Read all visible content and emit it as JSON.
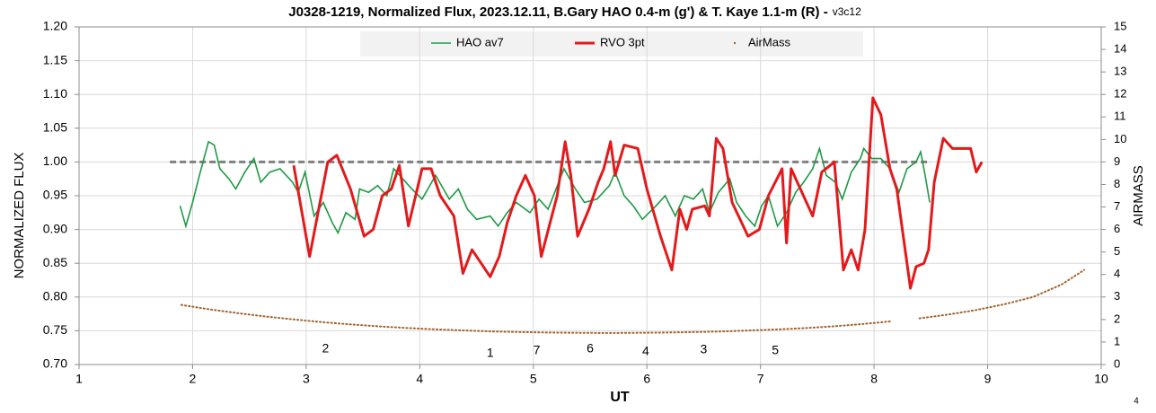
{
  "chart_data": {
    "type": "line",
    "title": "J0328-1219, Normalized Flux, 2023.12.11, B.Gary HAO 0.4-m (g') & T. Kaye 1.1-m (R) -",
    "subtitle": "v3c12",
    "x_label": "UT",
    "y_label": "NORMALIZED FLUX",
    "y2_label": "AIRMASS",
    "footnote": "4",
    "xlim": [
      1,
      10
    ],
    "xticks": [
      1,
      2,
      3,
      4,
      5,
      6,
      7,
      8,
      9,
      10
    ],
    "ylim": [
      0.7,
      1.2
    ],
    "yticks": [
      {
        "value": 0.7,
        "label": "0.70"
      },
      {
        "value": 0.75,
        "label": "0.75"
      },
      {
        "value": 0.8,
        "label": "0.80"
      },
      {
        "value": 0.85,
        "label": "0.85"
      },
      {
        "value": 0.9,
        "label": "0.90"
      },
      {
        "value": 0.95,
        "label": "0.95"
      },
      {
        "value": 1.0,
        "label": "1.00"
      },
      {
        "value": 1.05,
        "label": "1.05"
      },
      {
        "value": 1.1,
        "label": "1.10"
      },
      {
        "value": 1.15,
        "label": "1.15"
      },
      {
        "value": 1.2,
        "label": "1.20"
      }
    ],
    "y2lim": [
      0,
      15
    ],
    "y2ticks": [
      0,
      1,
      2,
      3,
      4,
      5,
      6,
      7,
      8,
      9,
      10,
      11,
      12,
      13,
      14,
      15
    ],
    "grid": true,
    "legend": "top",
    "reference_line": {
      "y": 1.0,
      "x": [
        1.8,
        8.5
      ],
      "color": "#808080"
    },
    "series": [
      {
        "name": "HAO av7",
        "color": "#1e9a44",
        "style": "line",
        "x": [
          1.89,
          1.94,
          2.0,
          2.06,
          2.14,
          2.19,
          2.24,
          2.32,
          2.38,
          2.46,
          2.54,
          2.6,
          2.68,
          2.77,
          2.88,
          2.93,
          2.99,
          3.07,
          3.15,
          3.23,
          3.28,
          3.35,
          3.43,
          3.47,
          3.55,
          3.63,
          3.71,
          3.77,
          3.85,
          3.93,
          4.02,
          4.14,
          4.26,
          4.34,
          4.42,
          4.5,
          4.62,
          4.69,
          4.77,
          4.85,
          4.97,
          5.05,
          5.13,
          5.27,
          5.37,
          5.45,
          5.56,
          5.67,
          5.72,
          5.8,
          5.88,
          5.96,
          6.08,
          6.16,
          6.25,
          6.33,
          6.41,
          6.49,
          6.55,
          6.63,
          6.73,
          6.79,
          6.87,
          6.95,
          7.01,
          7.07,
          7.15,
          7.23,
          7.31,
          7.38,
          7.46,
          7.52,
          7.58,
          7.66,
          7.72,
          7.8,
          7.88,
          7.91,
          7.98,
          8.06,
          8.14,
          8.22,
          8.29,
          8.37,
          8.41,
          8.45,
          8.49
        ],
        "values": [
          0.935,
          0.905,
          0.94,
          0.98,
          1.03,
          1.025,
          0.99,
          0.975,
          0.96,
          0.985,
          1.005,
          0.97,
          0.985,
          0.99,
          0.97,
          0.955,
          0.985,
          0.92,
          0.94,
          0.91,
          0.895,
          0.925,
          0.915,
          0.96,
          0.955,
          0.965,
          0.95,
          0.99,
          0.975,
          0.96,
          0.945,
          0.98,
          0.945,
          0.96,
          0.93,
          0.915,
          0.92,
          0.905,
          0.925,
          0.94,
          0.925,
          0.945,
          0.93,
          0.99,
          0.96,
          0.94,
          0.945,
          0.965,
          0.985,
          0.95,
          0.935,
          0.915,
          0.935,
          0.95,
          0.92,
          0.95,
          0.945,
          0.96,
          0.925,
          0.955,
          0.975,
          0.94,
          0.92,
          0.905,
          0.935,
          0.95,
          0.905,
          0.925,
          0.955,
          0.97,
          0.99,
          1.02,
          0.98,
          0.97,
          0.945,
          0.985,
          1.005,
          1.02,
          1.005,
          1.005,
          0.99,
          0.955,
          0.99,
          1.0,
          1.015,
          0.98,
          0.94
        ]
      },
      {
        "name": "RVO 3pt",
        "color": "#e31a1c",
        "style": "thick",
        "x": [
          2.89,
          3.03,
          3.19,
          3.27,
          3.39,
          3.51,
          3.59,
          3.67,
          3.75,
          3.82,
          3.9,
          4.02,
          4.1,
          4.18,
          4.3,
          4.38,
          4.46,
          4.5,
          4.62,
          4.7,
          4.77,
          4.85,
          4.93,
          5.01,
          5.07,
          5.21,
          5.28,
          5.33,
          5.39,
          5.49,
          5.57,
          5.62,
          5.68,
          5.72,
          5.8,
          5.92,
          6.0,
          6.12,
          6.22,
          6.29,
          6.35,
          6.4,
          6.51,
          6.55,
          6.61,
          6.67,
          6.75,
          6.89,
          6.99,
          7.07,
          7.19,
          7.23,
          7.27,
          7.46,
          7.54,
          7.65,
          7.73,
          7.8,
          7.86,
          7.92,
          7.99,
          8.06,
          8.14,
          8.2,
          8.32,
          8.37,
          8.44,
          8.48,
          8.53,
          8.61,
          8.69,
          8.85,
          8.9,
          8.95
        ],
        "values": [
          0.995,
          0.86,
          1.0,
          1.01,
          0.96,
          0.89,
          0.9,
          0.95,
          0.96,
          0.995,
          0.905,
          0.99,
          0.99,
          0.95,
          0.92,
          0.835,
          0.87,
          0.86,
          0.83,
          0.86,
          0.91,
          0.95,
          0.98,
          0.95,
          0.86,
          0.95,
          1.03,
          0.98,
          0.89,
          0.93,
          0.97,
          0.99,
          1.03,
          0.98,
          1.025,
          1.02,
          0.96,
          0.89,
          0.84,
          0.93,
          0.9,
          0.93,
          0.935,
          0.92,
          1.035,
          1.02,
          0.94,
          0.89,
          0.9,
          0.95,
          0.99,
          0.88,
          0.99,
          0.92,
          0.985,
          1.0,
          0.84,
          0.87,
          0.84,
          0.9,
          1.095,
          1.07,
          0.99,
          0.96,
          0.813,
          0.845,
          0.85,
          0.87,
          0.97,
          1.035,
          1.02,
          1.02,
          0.985,
          1.0
        ]
      },
      {
        "name": "AirMass",
        "color": "#a0622d",
        "style": "dots",
        "axis": "y2",
        "x": [
          1.9,
          2.15,
          2.4,
          2.65,
          2.9,
          3.15,
          3.4,
          3.65,
          3.9,
          4.15,
          4.4,
          4.65,
          4.9,
          5.15,
          5.4,
          5.65,
          5.9,
          6.15,
          6.4,
          6.65,
          6.9,
          7.15,
          7.4,
          7.65,
          7.9,
          8.15,
          8.3,
          8.4,
          8.65,
          8.9,
          9.15,
          9.4,
          9.65,
          9.85
        ],
        "values": [
          2.65,
          2.45,
          2.28,
          2.13,
          2.0,
          1.88,
          1.78,
          1.69,
          1.62,
          1.56,
          1.51,
          1.47,
          1.44,
          1.42,
          1.41,
          1.4,
          1.41,
          1.42,
          1.44,
          1.47,
          1.51,
          1.56,
          1.62,
          1.7,
          1.8,
          1.92,
          null,
          2.05,
          2.22,
          2.42,
          2.68,
          3.0,
          3.55,
          4.2
        ]
      }
    ],
    "annotations": [
      {
        "text": "2",
        "x": 3.17,
        "y": 0.68,
        "axis": "y2"
      },
      {
        "text": "1",
        "x": 4.62,
        "y": 0.48,
        "axis": "y2"
      },
      {
        "text": "7",
        "x": 5.03,
        "y": 0.6,
        "axis": "y2"
      },
      {
        "text": "6",
        "x": 5.5,
        "y": 0.68,
        "axis": "y2"
      },
      {
        "text": "4",
        "x": 5.99,
        "y": 0.56,
        "axis": "y2"
      },
      {
        "text": "3",
        "x": 6.5,
        "y": 0.64,
        "axis": "y2"
      },
      {
        "text": "5",
        "x": 7.13,
        "y": 0.6,
        "axis": "y2"
      }
    ]
  }
}
